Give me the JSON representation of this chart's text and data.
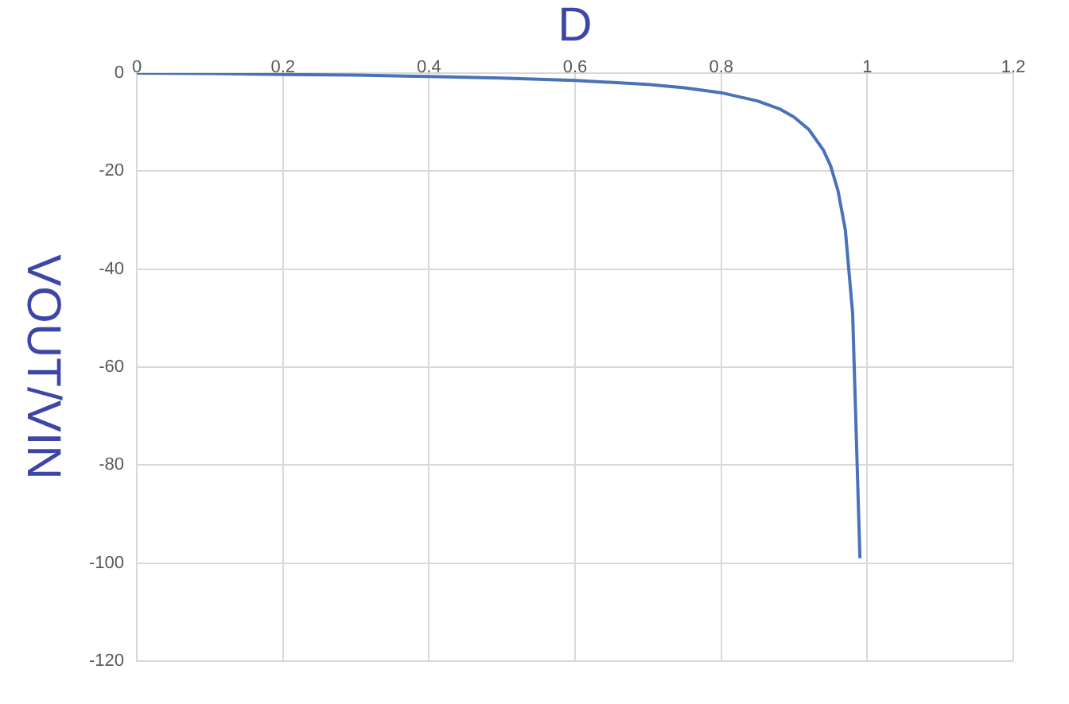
{
  "chart_data": {
    "type": "line",
    "title": "D",
    "ylabel": "VOUT/VIN",
    "x": [
      0,
      0.1,
      0.2,
      0.3,
      0.4,
      0.5,
      0.6,
      0.7,
      0.75,
      0.8,
      0.85,
      0.88,
      0.9,
      0.92,
      0.94,
      0.95,
      0.96,
      0.97,
      0.98,
      0.99
    ],
    "series": [
      {
        "color": "#4a72b8",
        "values": [
          0,
          -0.1,
          -0.3,
          -0.4,
          -0.7,
          -1,
          -1.5,
          -2.3,
          -3,
          -4,
          -5.7,
          -7.3,
          -9,
          -11.5,
          -15.7,
          -19,
          -24,
          -32,
          -49,
          -99
        ]
      }
    ],
    "xlim": [
      0,
      1.2
    ],
    "xticks": [
      0,
      0.2,
      0.4,
      0.6,
      0.8,
      1,
      1.2
    ],
    "ylim": [
      -120,
      0
    ],
    "yticks": [
      -120,
      -100,
      -80,
      -60,
      -40,
      -20,
      0
    ],
    "grid": true,
    "legend": false,
    "marker": "none",
    "line_style": "solid"
  }
}
